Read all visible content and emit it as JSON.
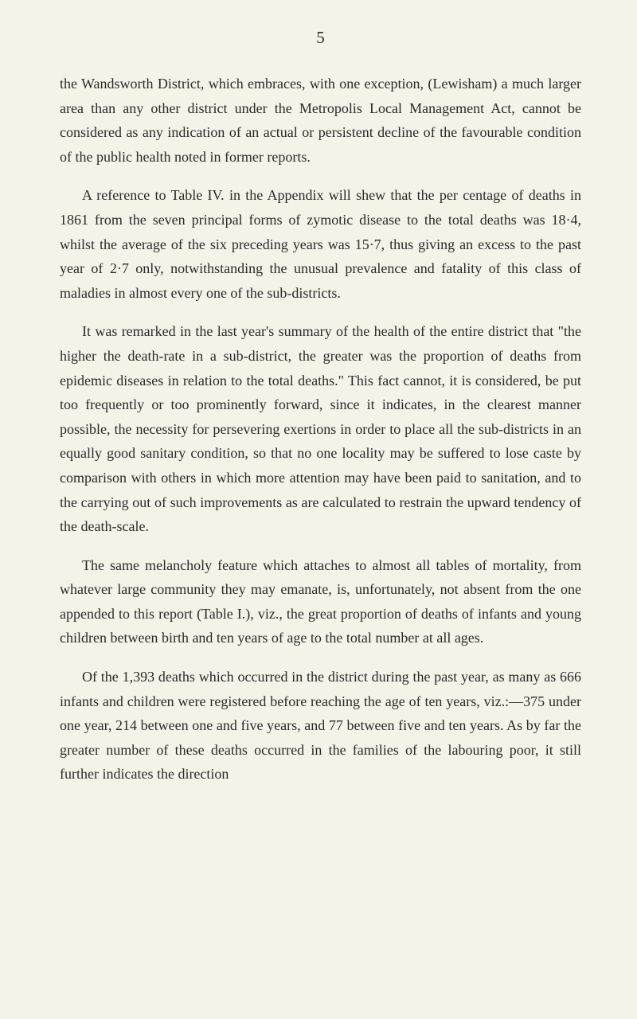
{
  "page_number": "5",
  "background_color": "#f5f2e8",
  "text_color": "#2a2a2a",
  "font_family": "Georgia, 'Times New Roman', serif",
  "base_fontsize": 18,
  "page_number_fontsize": 21,
  "line_height": 1.7,
  "text_indent": 28,
  "paragraphs": [
    "the Wandsworth District, which embraces, with one exception, (Lewisham) a much larger area than any other district under the Metropolis Local Management Act, cannot be considered as any indication of an actual or persistent decline of the favourable condition of the public health noted in former reports.",
    "A reference to Table IV. in the Appendix will shew that the per centage of deaths in 1861 from the seven principal forms of zymotic disease to the total deaths was 18·4, whilst the average of the six preceding years was 15·7, thus giving an excess to the past year of 2·7 only, notwithstanding the unusual prevalence and fatality of this class of maladies in almost every one of the sub-districts.",
    "It was remarked in the last year's summary of the health of the entire district that \"the higher the death-rate in a sub-district, the greater was the proportion of deaths from epidemic diseases in relation to the total deaths.\" This fact cannot, it is considered, be put too frequently or too prominently forward, since it indicates, in the clearest manner possible, the necessity for persevering exertions in order to place all the sub-districts in an equally good sanitary condition, so that no one locality may be suffered to lose caste by comparison with others in which more attention may have been paid to sanitation, and to the carrying out of such improvements as are calculated to restrain the upward tendency of the death-scale.",
    "The same melancholy feature which attaches to almost all tables of mortality, from whatever large community they may emanate, is, unfortunately, not absent from the one appended to this report (Table I.), viz., the great proportion of deaths of infants and young children between birth and ten years of age to the total number at all ages.",
    "Of the 1,393 deaths which occurred in the district during the past year, as many as 666 infants and children were registered before reaching the age of ten years, viz.:—375 under one year, 214 between one and five years, and 77 between five and ten years. As by far the greater number of these deaths occurred in the families of the labouring poor, it still further indicates the direction"
  ]
}
